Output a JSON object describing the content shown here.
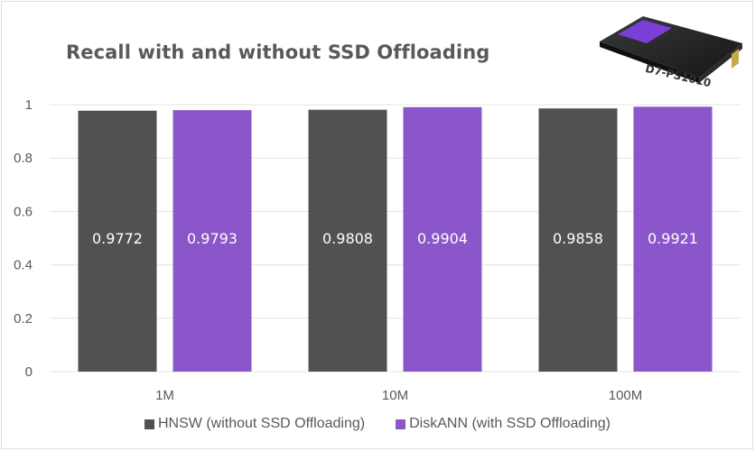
{
  "chart_data": {
    "type": "bar",
    "title": "Recall with and without SSD Offloading",
    "xlabel": "",
    "ylabel": "",
    "ylim": [
      0,
      1
    ],
    "yticks": [
      "0",
      "0.2",
      "0.4",
      "0.6",
      "0.8",
      "1"
    ],
    "ytick_values": [
      0,
      0.2,
      0.4,
      0.6,
      0.8,
      1
    ],
    "grid": true,
    "categories": [
      "1M",
      "10M",
      "100M"
    ],
    "series": [
      {
        "name": "HNSW (without SSD Offloading)",
        "color": "#525150",
        "values": [
          0.9772,
          0.9808,
          0.9858
        ],
        "labels": [
          "0.9772",
          "0.9808",
          "0.9858"
        ]
      },
      {
        "name": "DiskANN (with SSD Offloading)",
        "color": "#8a56c9",
        "values": [
          0.9793,
          0.9904,
          0.9921
        ],
        "labels": [
          "0.9793",
          "0.9904",
          "0.9921"
        ]
      }
    ],
    "legend_position": "bottom"
  },
  "product_image": {
    "label": "D7-PS1010",
    "icon": "ssd-drive-image"
  }
}
